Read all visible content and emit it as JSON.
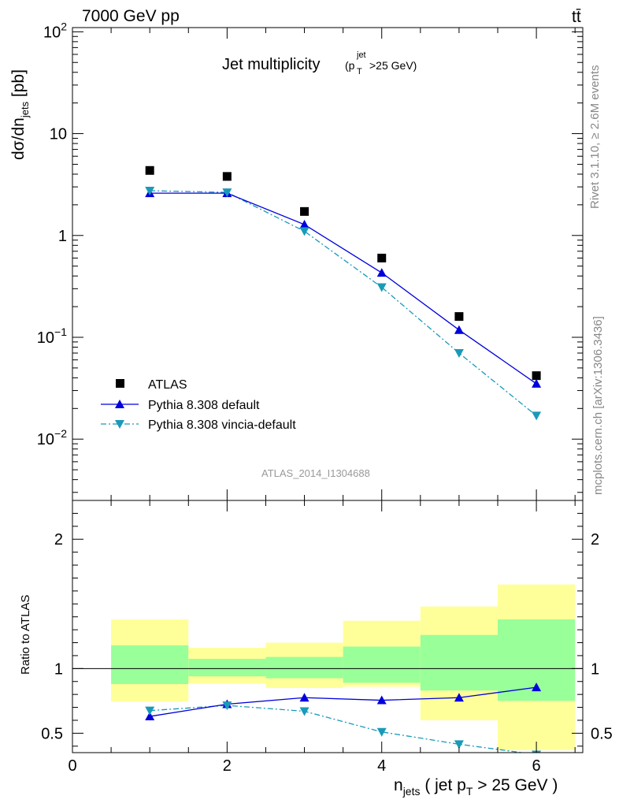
{
  "header": {
    "left": "7000 GeV pp",
    "right": "tt̄"
  },
  "side_text": {
    "rivet": "Rivet 3.1.10, ≥ 2.6M events",
    "mcplots": "mcplots.cern.ch [arXiv:1306.3436]"
  },
  "chart_data": [
    {
      "type": "scatter",
      "title": "Jet multiplicity",
      "title_sub": "(p",
      "title_sub_T": "T",
      "title_sub_sup": "jet",
      "title_sub_tail": ">25 GeV)",
      "ylabel": "dσ/dn",
      "ylabel_sub": "jets",
      "ylabel_unit": " [pb]",
      "yscale": "log",
      "ylim": [
        0.0025,
        110
      ],
      "xlim": [
        0,
        6.6
      ],
      "yticks": [
        {
          "value": 0.01,
          "base": "10",
          "exp": "−2"
        },
        {
          "value": 0.1,
          "base": "10",
          "exp": "−1"
        },
        {
          "value": 1,
          "base": "1",
          "exp": ""
        },
        {
          "value": 10,
          "base": "10",
          "exp": ""
        },
        {
          "value": 100,
          "base": "10",
          "exp": "2"
        }
      ],
      "watermark": "ATLAS_2014_I1304688",
      "legend_position": "bottom-left",
      "series": [
        {
          "name": "ATLAS",
          "marker": "square",
          "color": "#000000",
          "x": [
            1,
            2,
            3,
            4,
            5,
            6
          ],
          "y": [
            4.35,
            3.8,
            1.72,
            0.6,
            0.16,
            0.042
          ]
        },
        {
          "name": "Pythia 8.308 default",
          "marker": "triangle-up",
          "color": "#0000dd",
          "line": "solid",
          "x": [
            1,
            2,
            3,
            4,
            5,
            6
          ],
          "y": [
            2.6,
            2.6,
            1.28,
            0.43,
            0.118,
            0.035
          ]
        },
        {
          "name": "Pythia 8.308 vincia-default",
          "marker": "triangle-down",
          "color": "#1a9ab8",
          "line": "dashdot",
          "x": [
            1,
            2,
            3,
            4,
            5,
            6
          ],
          "y": [
            2.75,
            2.65,
            1.1,
            0.31,
            0.07,
            0.017
          ]
        }
      ]
    },
    {
      "type": "scatter",
      "ylabel": "Ratio to ATLAS",
      "xlabel": "n",
      "xlabel_sub": "jets",
      "xlabel_mid": " ( jet p",
      "xlabel_sub2": "T",
      "xlabel_tail": " > 25 GeV )",
      "ylim": [
        0.35,
        2.3
      ],
      "xlim": [
        0,
        6.6
      ],
      "yticks": [
        0.5,
        1,
        2
      ],
      "xticks": [
        0,
        2,
        4,
        6
      ],
      "bands": {
        "bins": [
          [
            0.5,
            1.5
          ],
          [
            1.5,
            2.5
          ],
          [
            2.5,
            3.5
          ],
          [
            3.5,
            4.5
          ],
          [
            4.5,
            5.5
          ],
          [
            5.5,
            6.5
          ]
        ],
        "yellow": [
          [
            0.745,
            1.38
          ],
          [
            0.885,
            1.16
          ],
          [
            0.85,
            1.2
          ],
          [
            0.86,
            1.37
          ],
          [
            0.6,
            1.48
          ],
          [
            0.37,
            1.65
          ]
        ],
        "green": [
          [
            0.88,
            1.18
          ],
          [
            0.94,
            1.075
          ],
          [
            0.925,
            1.09
          ],
          [
            0.89,
            1.17
          ],
          [
            0.83,
            1.26
          ],
          [
            0.75,
            1.38
          ]
        ],
        "colors": {
          "yellow": "#ffff99",
          "green": "#99ff99"
        }
      },
      "series": [
        {
          "name": "Pythia 8.308 default",
          "color": "#0000dd",
          "x": [
            1,
            2,
            3,
            4,
            5,
            6
          ],
          "y": [
            0.63,
            0.725,
            0.775,
            0.755,
            0.775,
            0.855
          ]
        },
        {
          "name": "Pythia 8.308 vincia-default",
          "color": "#1a9ab8",
          "x": [
            1,
            2,
            3,
            4,
            5,
            6
          ],
          "y": [
            0.675,
            0.715,
            0.67,
            0.51,
            0.415,
            0.335
          ]
        }
      ]
    }
  ]
}
